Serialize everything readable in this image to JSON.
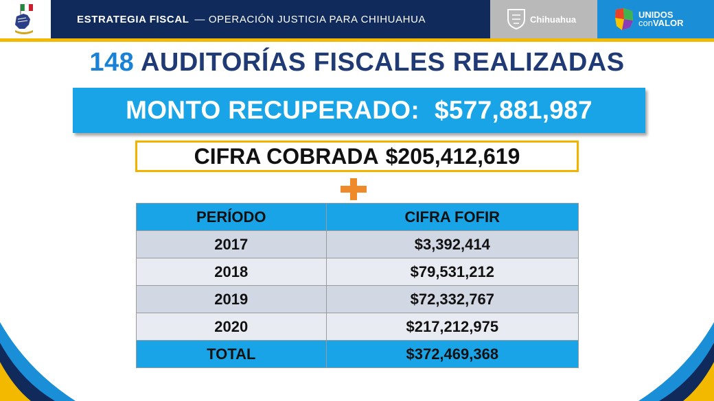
{
  "header": {
    "banner_bold": "ESTRATEGIA FISCAL",
    "banner_thin": "— OPERACIÓN JUSTICIA PARA CHIHUAHUA",
    "chihuahua_label": "Chihuahua",
    "unidos_line1": "UNIDOS",
    "unidos_line2a": "con",
    "unidos_line2b": "VALOR"
  },
  "title": {
    "number": "148",
    "text": "AUDITORÍAS FISCALES REALIZADAS"
  },
  "monto": {
    "label": "MONTO RECUPERADO:",
    "value": "$577,881,987"
  },
  "cobrada": {
    "label": "CIFRA COBRADA",
    "value": "$205,412,619"
  },
  "table": {
    "headers": [
      "PERÍODO",
      "CIFRA FOFIR"
    ],
    "rows": [
      {
        "periodo": "2017",
        "cifra": "$3,392,414"
      },
      {
        "periodo": "2018",
        "cifra": "$79,531,212"
      },
      {
        "periodo": "2019",
        "cifra": "$72,332,767"
      },
      {
        "periodo": "2020",
        "cifra": "$217,212,975"
      }
    ],
    "total": {
      "label": "TOTAL",
      "value": "$372,469,368"
    }
  },
  "colors": {
    "navy": "#102a5c",
    "accent_blue": "#1aa4e8",
    "gold": "#f2b900",
    "orange": "#ef8a2b"
  }
}
